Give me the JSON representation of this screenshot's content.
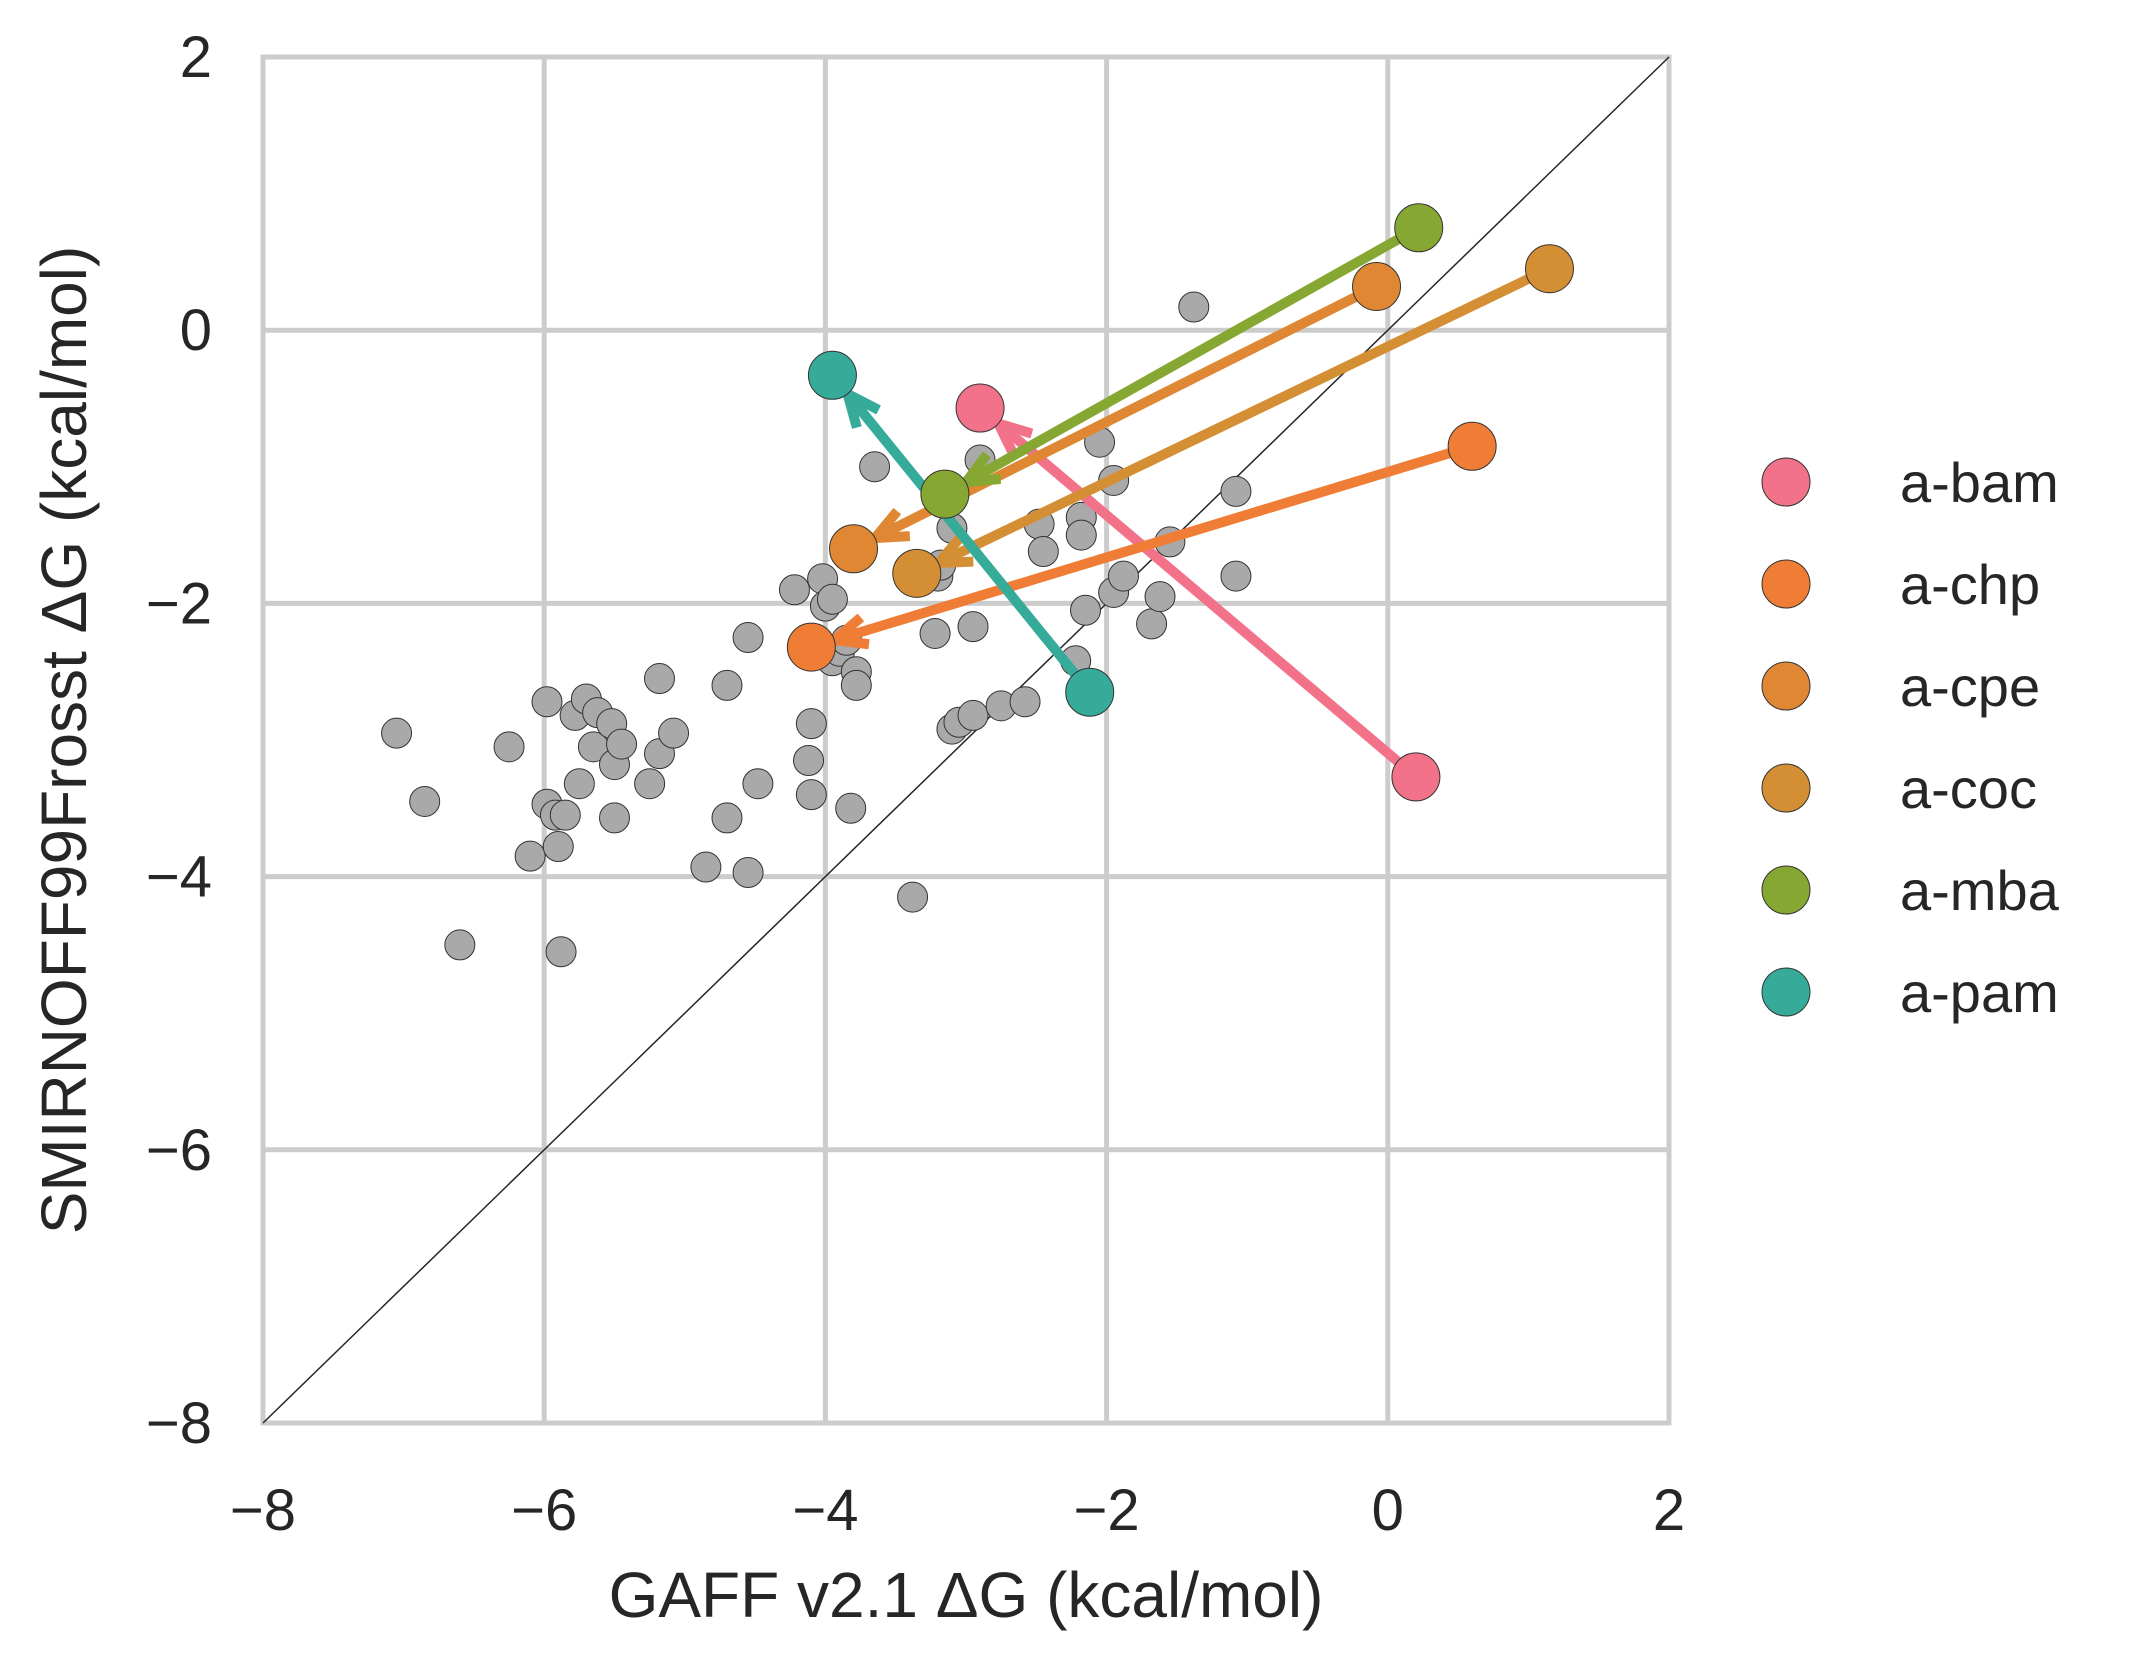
{
  "chart_data": {
    "type": "scatter",
    "xlabel": "GAFF v2.1 ΔG (kcal/mol)",
    "ylabel": "SMIRNOFF99Frosst ΔG (kcal/mol)",
    "xlim": [
      -8,
      2
    ],
    "ylim": [
      -8,
      2
    ],
    "x_ticks": [
      "−8",
      "−6",
      "−4",
      "−2",
      "0",
      "2"
    ],
    "y_ticks": [
      "−8",
      "−6",
      "−4",
      "−2",
      "0",
      "2"
    ],
    "x_tick_values": [
      -8,
      -6,
      -4,
      -2,
      0,
      2
    ],
    "y_tick_values": [
      -8,
      -6,
      -4,
      -2,
      0,
      2
    ],
    "grid": true,
    "identity_line": true,
    "legend_position": "right",
    "background_points": {
      "color": "#a9a9a9",
      "points": [
        [
          -7.05,
          -2.95
        ],
        [
          -6.85,
          -3.45
        ],
        [
          -6.6,
          -4.5
        ],
        [
          -6.25,
          -3.05
        ],
        [
          -6.1,
          -3.85
        ],
        [
          -5.98,
          -2.72
        ],
        [
          -5.98,
          -3.47
        ],
        [
          -5.92,
          -3.55
        ],
        [
          -5.9,
          -3.78
        ],
        [
          -5.88,
          -4.55
        ],
        [
          -5.85,
          -3.55
        ],
        [
          -5.78,
          -2.82
        ],
        [
          -5.75,
          -3.32
        ],
        [
          -5.7,
          -2.7
        ],
        [
          -5.65,
          -3.05
        ],
        [
          -5.62,
          -2.8
        ],
        [
          -5.52,
          -2.88
        ],
        [
          -5.5,
          -3.18
        ],
        [
          -5.5,
          -3.57
        ],
        [
          -5.45,
          -3.03
        ],
        [
          -5.25,
          -3.32
        ],
        [
          -5.18,
          -2.55
        ],
        [
          -5.18,
          -3.1
        ],
        [
          -5.08,
          -2.95
        ],
        [
          -4.85,
          -3.93
        ],
        [
          -4.7,
          -2.6
        ],
        [
          -4.7,
          -3.57
        ],
        [
          -4.55,
          -2.25
        ],
        [
          -4.55,
          -3.97
        ],
        [
          -4.48,
          -3.32
        ],
        [
          -4.22,
          -1.9
        ],
        [
          -4.12,
          -3.15
        ],
        [
          -4.1,
          -2.88
        ],
        [
          -4.1,
          -3.4
        ],
        [
          -4.02,
          -1.82
        ],
        [
          -4.0,
          -2.02
        ],
        [
          -3.95,
          -1.97
        ],
        [
          -3.95,
          -2.42
        ],
        [
          -3.9,
          -2.35
        ],
        [
          -3.85,
          -2.27
        ],
        [
          -3.82,
          -3.5
        ],
        [
          -3.78,
          -2.5
        ],
        [
          -3.78,
          -2.6
        ],
        [
          -3.65,
          -1.0
        ],
        [
          -3.38,
          -4.15
        ],
        [
          -3.22,
          -2.22
        ],
        [
          -3.2,
          -1.8
        ],
        [
          -3.18,
          -1.72
        ],
        [
          -3.1,
          -1.45
        ],
        [
          -3.1,
          -2.92
        ],
        [
          -3.05,
          -2.87
        ],
        [
          -2.95,
          -2.82
        ],
        [
          -2.95,
          -2.17
        ],
        [
          -2.9,
          -0.95
        ],
        [
          -2.75,
          -2.75
        ],
        [
          -2.58,
          -2.72
        ],
        [
          -2.48,
          -1.42
        ],
        [
          -2.45,
          -1.62
        ],
        [
          -2.22,
          -2.42
        ],
        [
          -2.18,
          -1.37
        ],
        [
          -2.18,
          -1.5
        ],
        [
          -2.15,
          -2.05
        ],
        [
          -2.05,
          -0.82
        ],
        [
          -1.95,
          -1.1
        ],
        [
          -1.95,
          -1.92
        ],
        [
          -1.88,
          -1.8
        ],
        [
          -1.68,
          -2.15
        ],
        [
          -1.62,
          -1.95
        ],
        [
          -1.55,
          -1.55
        ],
        [
          -1.38,
          0.17
        ],
        [
          -1.08,
          -1.18
        ],
        [
          -1.08,
          -1.8
        ]
      ]
    },
    "series": [
      {
        "name": "a-bam",
        "color": "#f2728a",
        "from": [
          0.2,
          -3.27
        ],
        "to": [
          -2.9,
          -0.57
        ]
      },
      {
        "name": "a-chp",
        "color": "#f07d35",
        "from": [
          0.6,
          -0.85
        ],
        "to": [
          -4.1,
          -2.32
        ]
      },
      {
        "name": "a-cpe",
        "color": "#e08733",
        "from": [
          -0.08,
          0.32
        ],
        "to": [
          -3.8,
          -1.6
        ]
      },
      {
        "name": "a-coc",
        "color": "#d48f34",
        "from": [
          1.15,
          0.45
        ],
        "to": [
          -3.35,
          -1.78
        ]
      },
      {
        "name": "a-mba",
        "color": "#86a832",
        "from": [
          0.22,
          0.75
        ],
        "to": [
          -3.15,
          -1.2
        ]
      },
      {
        "name": "a-pam",
        "color": "#36ab9a",
        "from": [
          -2.12,
          -2.65
        ],
        "to": [
          -3.95,
          -0.33
        ]
      }
    ]
  }
}
